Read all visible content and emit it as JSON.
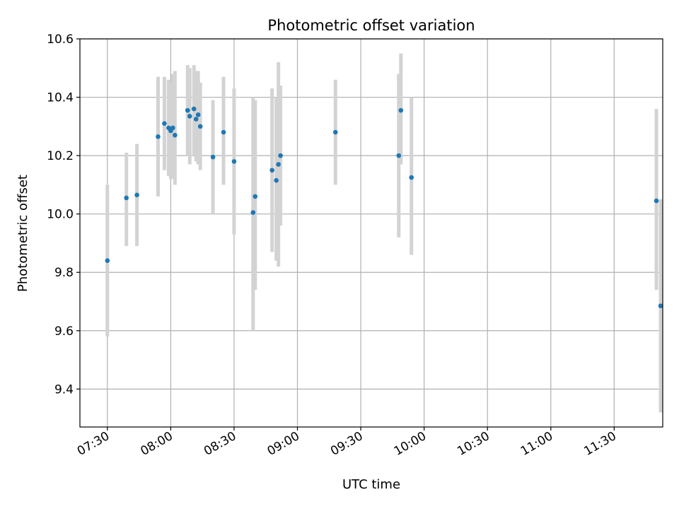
{
  "chart_data": {
    "type": "scatter",
    "title": "Photometric offset variation",
    "xlabel": "UTC time",
    "ylabel": "Photometric offset",
    "x_axis_type": "time",
    "xlim": [
      "07:17",
      "11:53"
    ],
    "ylim": [
      9.27,
      10.6
    ],
    "x_ticks": [
      "07:30",
      "08:00",
      "08:30",
      "09:00",
      "09:30",
      "10:00",
      "10:30",
      "11:00",
      "11:30"
    ],
    "y_ticks": [
      9.4,
      9.6,
      9.8,
      10.0,
      10.2,
      10.4,
      10.6
    ],
    "grid": true,
    "marker_color": "#1f77b4",
    "errorbar_color": "#d3d3d3",
    "series": [
      {
        "points": [
          {
            "x": "07:30",
            "y": 9.84,
            "lo": 9.58,
            "hi": 10.1
          },
          {
            "x": "07:39",
            "y": 10.055,
            "lo": 9.89,
            "hi": 10.21
          },
          {
            "x": "07:44",
            "y": 10.065,
            "lo": 9.89,
            "hi": 10.24
          },
          {
            "x": "07:54",
            "y": 10.265,
            "lo": 10.06,
            "hi": 10.47
          },
          {
            "x": "07:57",
            "y": 10.31,
            "lo": 10.15,
            "hi": 10.47
          },
          {
            "x": "07:59",
            "y": 10.295,
            "lo": 10.13,
            "hi": 10.46
          },
          {
            "x": "08:00",
            "y": 10.285,
            "lo": 10.12,
            "hi": 10.45
          },
          {
            "x": "08:01",
            "y": 10.295,
            "lo": 10.12,
            "hi": 10.48
          },
          {
            "x": "08:02",
            "y": 10.27,
            "lo": 10.1,
            "hi": 10.49
          },
          {
            "x": "08:08",
            "y": 10.355,
            "lo": 10.2,
            "hi": 10.51
          },
          {
            "x": "08:09",
            "y": 10.335,
            "lo": 10.17,
            "hi": 10.5
          },
          {
            "x": "08:11",
            "y": 10.36,
            "lo": 10.2,
            "hi": 10.51
          },
          {
            "x": "08:12",
            "y": 10.325,
            "lo": 10.18,
            "hi": 10.49
          },
          {
            "x": "08:13",
            "y": 10.34,
            "lo": 10.17,
            "hi": 10.49
          },
          {
            "x": "08:14",
            "y": 10.3,
            "lo": 10.15,
            "hi": 10.45
          },
          {
            "x": "08:20",
            "y": 10.195,
            "lo": 10.0,
            "hi": 10.39
          },
          {
            "x": "08:25",
            "y": 10.28,
            "lo": 10.1,
            "hi": 10.47
          },
          {
            "x": "08:30",
            "y": 10.18,
            "lo": 9.93,
            "hi": 10.43
          },
          {
            "x": "08:39",
            "y": 10.005,
            "lo": 9.6,
            "hi": 10.4
          },
          {
            "x": "08:40",
            "y": 10.06,
            "lo": 9.74,
            "hi": 10.39
          },
          {
            "x": "08:48",
            "y": 10.15,
            "lo": 9.87,
            "hi": 10.43
          },
          {
            "x": "08:50",
            "y": 10.115,
            "lo": 9.84,
            "hi": 10.4
          },
          {
            "x": "08:51",
            "y": 10.17,
            "lo": 9.82,
            "hi": 10.52
          },
          {
            "x": "08:52",
            "y": 10.2,
            "lo": 9.96,
            "hi": 10.44
          },
          {
            "x": "09:18",
            "y": 10.28,
            "lo": 10.1,
            "hi": 10.46
          },
          {
            "x": "09:48",
            "y": 10.2,
            "lo": 9.92,
            "hi": 10.48
          },
          {
            "x": "09:49",
            "y": 10.355,
            "lo": 10.17,
            "hi": 10.55
          },
          {
            "x": "09:54",
            "y": 10.125,
            "lo": 9.86,
            "hi": 10.4
          },
          {
            "x": "11:50",
            "y": 10.045,
            "lo": 9.74,
            "hi": 10.36
          },
          {
            "x": "11:52",
            "y": 9.685,
            "lo": 9.32,
            "hi": 10.05
          }
        ]
      }
    ]
  }
}
